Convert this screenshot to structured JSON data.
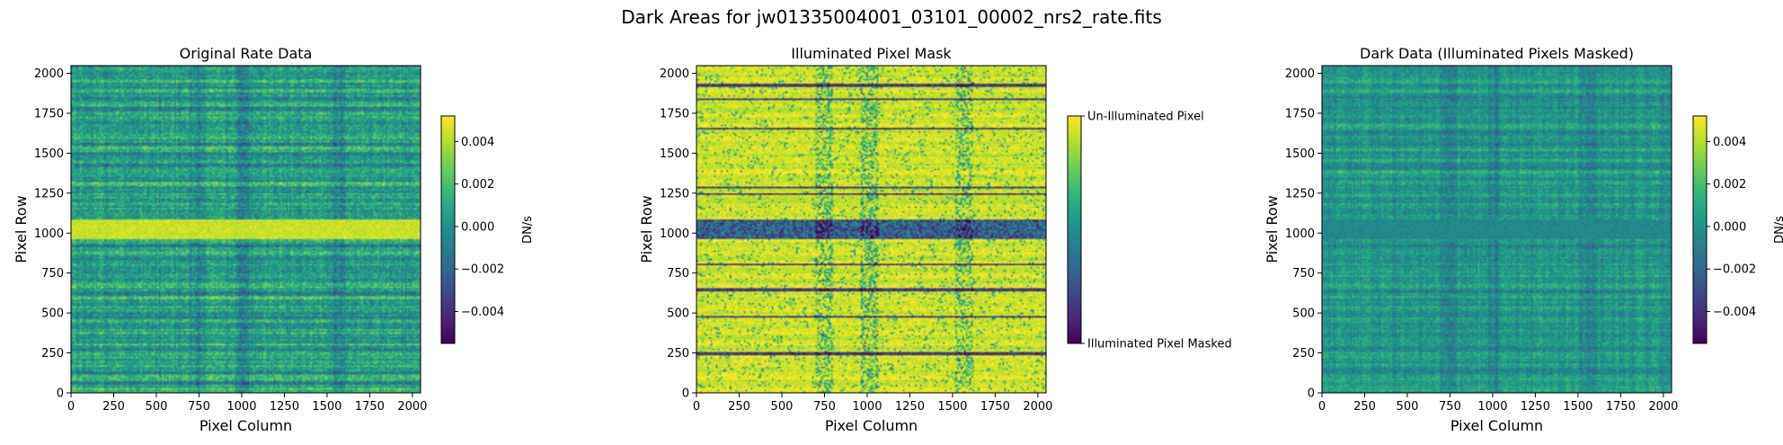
{
  "figure": {
    "suptitle": "Dark Areas for jw01335004001_03101_00002_nrs2_rate.fits"
  },
  "colors": {
    "viridis": [
      "#440154",
      "#482878",
      "#3e4989",
      "#31688e",
      "#26828e",
      "#1f9e89",
      "#35b779",
      "#6ece58",
      "#b5de2b",
      "#fde725"
    ]
  },
  "chart_data": [
    {
      "type": "heatmap",
      "title": "Original Rate Data",
      "xlabel": "Pixel Column",
      "ylabel": "Pixel Row",
      "xlim": [
        0,
        2048
      ],
      "ylim": [
        0,
        2048
      ],
      "x_ticks": [
        0,
        250,
        500,
        750,
        1000,
        1250,
        1500,
        1750,
        2000
      ],
      "y_ticks": [
        0,
        250,
        500,
        750,
        1000,
        1250,
        1500,
        1750,
        2000
      ],
      "colorbar": {
        "label": "DN/s",
        "range": [
          -0.0055,
          0.0052
        ],
        "ticks": [
          -0.004,
          -0.002,
          0.0,
          0.002,
          0.004
        ],
        "tick_labels": [
          "−0.004",
          "−0.002",
          "0.000",
          "0.002",
          "0.004"
        ]
      },
      "style": "rate",
      "bright_band_rows": [
        955,
        1080
      ],
      "dark_columns": [
        740,
        1010,
        1560
      ]
    },
    {
      "type": "heatmap",
      "title": "Illuminated Pixel Mask",
      "xlabel": "Pixel Column",
      "ylabel": "Pixel Row",
      "xlim": [
        0,
        2048
      ],
      "ylim": [
        0,
        2048
      ],
      "x_ticks": [
        0,
        250,
        500,
        750,
        1000,
        1250,
        1500,
        1750,
        2000
      ],
      "y_ticks": [
        0,
        250,
        500,
        750,
        1000,
        1250,
        1500,
        1750,
        2000
      ],
      "colorbar": {
        "label": "",
        "range": [
          0,
          1
        ],
        "ticks": [
          1,
          0
        ],
        "tick_labels": [
          "Un-Illuminated Pixel",
          "Illuminated Pixel Masked"
        ]
      },
      "style": "mask",
      "masked_band_rows": [
        955,
        1080
      ],
      "masked_lines_rows": [
        1920,
        1830,
        1650,
        1280,
        1240,
        800,
        640,
        470,
        240
      ]
    },
    {
      "type": "heatmap",
      "title": "Dark Data (Illuminated Pixels Masked)",
      "xlabel": "Pixel Column",
      "ylabel": "Pixel Row",
      "xlim": [
        0,
        2048
      ],
      "ylim": [
        0,
        2048
      ],
      "x_ticks": [
        0,
        250,
        500,
        750,
        1000,
        1250,
        1500,
        1750,
        2000
      ],
      "y_ticks": [
        0,
        250,
        500,
        750,
        1000,
        1250,
        1500,
        1750,
        2000
      ],
      "colorbar": {
        "label": "DN/s",
        "range": [
          -0.0055,
          0.0052
        ],
        "ticks": [
          -0.004,
          -0.002,
          0.0,
          0.002,
          0.004
        ],
        "tick_labels": [
          "−0.004",
          "−0.002",
          "0.000",
          "0.002",
          "0.004"
        ]
      },
      "style": "dark",
      "masked_band_rows": [
        955,
        1080
      ],
      "dark_columns": [
        740,
        1010,
        1560
      ]
    }
  ]
}
